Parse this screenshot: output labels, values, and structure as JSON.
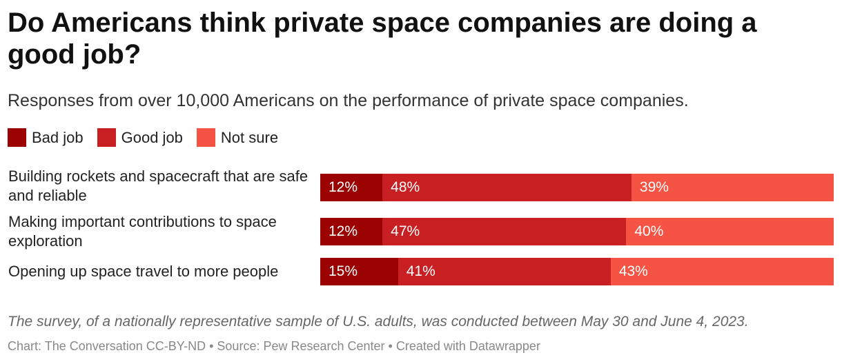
{
  "title": "Do Americans think private space companies are doing a good job?",
  "subtitle": "Responses from over 10,000 Americans on the performance of private space companies.",
  "legend": [
    {
      "label": "Bad job",
      "color": "#9b0303"
    },
    {
      "label": "Good job",
      "color": "#c81f23"
    },
    {
      "label": "Not sure",
      "color": "#f55444"
    }
  ],
  "chart_data": {
    "type": "bar",
    "orientation": "horizontal",
    "stacked": true,
    "categories": [
      "Building rockets and spacecraft that are safe and reliable",
      "Making important contributions to space exploration",
      "Opening up space travel to more people"
    ],
    "series": [
      {
        "name": "Bad job",
        "values": [
          12,
          12,
          15
        ],
        "labels": [
          "12%",
          "12%",
          "15%"
        ],
        "color": "#9b0303"
      },
      {
        "name": "Good job",
        "values": [
          48,
          47,
          41
        ],
        "labels": [
          "48%",
          "47%",
          "41%"
        ],
        "color": "#c81f23"
      },
      {
        "name": "Not sure",
        "values": [
          39,
          40,
          43
        ],
        "labels": [
          "39%",
          "40%",
          "43%"
        ],
        "color": "#f55444"
      }
    ],
    "legend_position": "top-left",
    "grid": false
  },
  "note": "The survey, of a nationally representative sample of U.S. adults, was conducted between May 30 and June 4, 2023.",
  "credits": "Chart: The Conversation CC-BY-ND • Source: Pew Research Center • Created with Datawrapper"
}
